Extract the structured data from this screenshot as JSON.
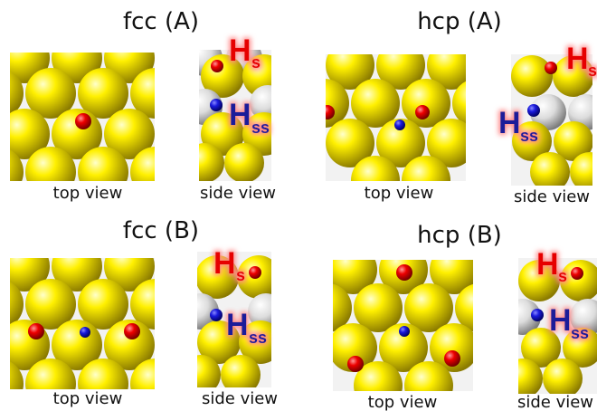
{
  "panels": [
    {
      "title": "fcc (A)",
      "top_caption": "top view",
      "side_caption": "side view",
      "label_s": "H",
      "sub_s": "s",
      "label_ss": "H",
      "sub_ss": "ss"
    },
    {
      "title": "hcp (A)",
      "top_caption": "top view",
      "side_caption": "side view",
      "label_s": "H",
      "sub_s": "s",
      "label_ss": "H",
      "sub_ss": "ss"
    },
    {
      "title": "fcc (B)",
      "top_caption": "top view",
      "side_caption": "side view",
      "label_s": "H",
      "sub_s": "s",
      "label_ss": "H",
      "sub_ss": "ss"
    },
    {
      "title": "hcp (B)",
      "top_caption": "top view",
      "side_caption": "side view",
      "label_s": "H",
      "sub_s": "s",
      "label_ss": "H",
      "sub_ss": "ss"
    }
  ],
  "colors": {
    "metal_atom": "#e8d800",
    "subsurface_metal_atom": "#d9d9d9",
    "surface_h": "#e60000",
    "subsurface_h": "#1a1acc",
    "label_h_s_fill": "#e60000",
    "label_h_ss_fill": "#1a1a99",
    "label_glow": "#ff9a9a"
  },
  "icons": [
    "metal-atom-icon",
    "surface-hydrogen-icon",
    "subsurface-hydrogen-icon"
  ]
}
